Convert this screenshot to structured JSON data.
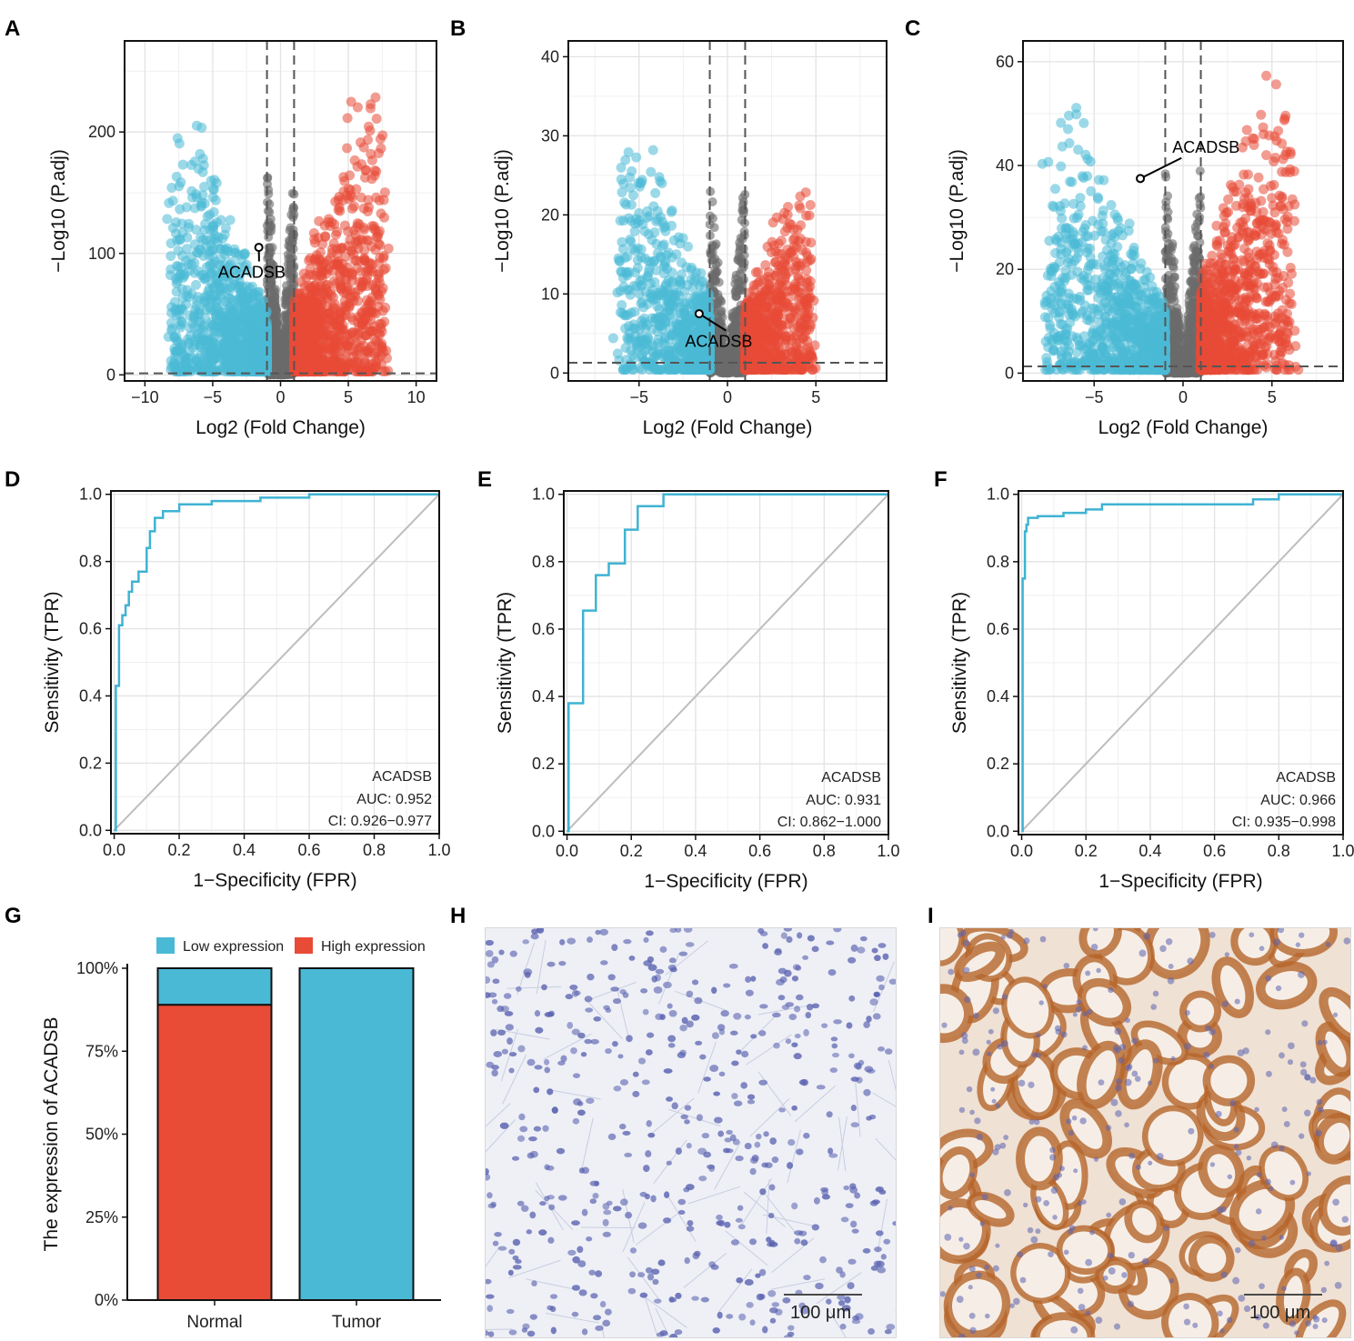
{
  "colors": {
    "low": "#4ab9d6",
    "high": "#e84b36",
    "ns": "#6b6b6b",
    "roc": "#3fb3d3",
    "diag": "#bdbdbd",
    "ihc_stain": "#b5652a",
    "ihc_nuclei": "#5b63b0"
  },
  "chart_data": [
    {
      "id": "A",
      "panel_label": "A",
      "type": "scatter",
      "xlabel": "Log2 (Fold Change)",
      "ylabel": "−Log10 (P.adj)",
      "xlim": [
        -11.5,
        11.5
      ],
      "ylim": [
        -5,
        275
      ],
      "xticks": [
        -10,
        -5,
        0,
        5,
        10
      ],
      "xtick_labels": [
        "−10",
        "−5",
        "0",
        "5",
        "10"
      ],
      "yticks": [
        0,
        100,
        200
      ],
      "ytick_labels": [
        "0",
        "100",
        "200"
      ],
      "fc_threshold": 1,
      "padj_line": 1.3,
      "gene": {
        "name": "ACADSB",
        "x": -1.6,
        "y": 105,
        "label_x": -4.6,
        "label_y": 80
      },
      "cloud": {
        "left_min": -8.5,
        "left_max": -1,
        "right_min": 1,
        "right_max": 8,
        "ymax_left": 230,
        "ymax_right": 262,
        "n": 1300
      }
    },
    {
      "id": "B",
      "panel_label": "B",
      "type": "scatter",
      "xlabel": "Log2 (Fold Change)",
      "ylabel": "−Log10 (P.adj)",
      "xlim": [
        -9,
        9
      ],
      "ylim": [
        -1,
        42
      ],
      "xticks": [
        -5,
        0,
        5
      ],
      "xtick_labels": [
        "−5",
        "0",
        "5"
      ],
      "yticks": [
        0,
        10,
        20,
        30,
        40
      ],
      "ytick_labels": [
        "0",
        "10",
        "20",
        "30",
        "40"
      ],
      "fc_threshold": 1,
      "padj_line": 1.3,
      "gene": {
        "name": "ACADSB",
        "x": -1.6,
        "y": 7.5,
        "label_x": -2.4,
        "label_y": 3.3
      },
      "cloud": {
        "left_min": -6.5,
        "left_max": -1,
        "right_min": 1,
        "right_max": 5,
        "ymax_left": 33,
        "ymax_right": 25,
        "n": 900
      }
    },
    {
      "id": "C",
      "panel_label": "C",
      "type": "scatter",
      "xlabel": "Log2 (Fold Change)",
      "ylabel": "−Log10 (P.adj)",
      "xlim": [
        -9,
        9
      ],
      "ylim": [
        -1.5,
        64
      ],
      "xticks": [
        -5,
        0,
        5
      ],
      "xtick_labels": [
        "−5",
        "0",
        "5"
      ],
      "yticks": [
        0,
        20,
        40,
        60
      ],
      "ytick_labels": [
        "0",
        "20",
        "40",
        "60"
      ],
      "fc_threshold": 1,
      "padj_line": 1.3,
      "gene": {
        "name": "ACADSB",
        "x": -2.4,
        "y": 37.5,
        "label_x": -0.6,
        "label_y": 42.5
      },
      "cloud": {
        "left_min": -8,
        "left_max": -1,
        "right_min": 1,
        "right_max": 6.5,
        "ymax_left": 54,
        "ymax_right": 61,
        "n": 1100
      }
    },
    {
      "id": "D",
      "panel_label": "D",
      "type": "line",
      "xlabel": "1−Specificity (FPR)",
      "ylabel": "Sensitivity (TPR)",
      "xlim": [
        -0.01,
        1.0
      ],
      "ylim": [
        -0.01,
        1.01
      ],
      "xticks": [
        0,
        0.2,
        0.4,
        0.6,
        0.8,
        1.0
      ],
      "xtick_labels": [
        "0.0",
        "0.2",
        "0.4",
        "0.6",
        "0.8",
        "1.0"
      ],
      "yticks": [
        0,
        0.2,
        0.4,
        0.6,
        0.8,
        1.0
      ],
      "ytick_labels": [
        "0.0",
        "0.2",
        "0.4",
        "0.6",
        "0.8",
        "1.0"
      ],
      "fpr": [
        0,
        0.005,
        0.005,
        0.015,
        0.015,
        0.025,
        0.025,
        0.035,
        0.035,
        0.045,
        0.045,
        0.055,
        0.055,
        0.075,
        0.075,
        0.1,
        0.1,
        0.11,
        0.11,
        0.125,
        0.125,
        0.15,
        0.15,
        0.2,
        0.2,
        0.3,
        0.3,
        0.45,
        0.45,
        0.6,
        0.6,
        1.0
      ],
      "tpr": [
        0,
        0,
        0.43,
        0.43,
        0.61,
        0.61,
        0.64,
        0.64,
        0.67,
        0.67,
        0.71,
        0.71,
        0.74,
        0.74,
        0.77,
        0.77,
        0.84,
        0.84,
        0.89,
        0.89,
        0.93,
        0.93,
        0.95,
        0.95,
        0.97,
        0.97,
        0.98,
        0.98,
        0.99,
        0.99,
        1.0,
        1.0
      ],
      "legend": {
        "name": "ACADSB",
        "auc": "AUC: 0.952",
        "ci": "CI: 0.926−0.977"
      }
    },
    {
      "id": "E",
      "panel_label": "E",
      "type": "line",
      "xlabel": "1−Specificity (FPR)",
      "ylabel": "Sensitivity (TPR)",
      "xlim": [
        -0.01,
        1.0
      ],
      "ylim": [
        -0.01,
        1.01
      ],
      "xticks": [
        0,
        0.2,
        0.4,
        0.6,
        0.8,
        1.0
      ],
      "xtick_labels": [
        "0.0",
        "0.2",
        "0.4",
        "0.6",
        "0.8",
        "1.0"
      ],
      "yticks": [
        0,
        0.2,
        0.4,
        0.6,
        0.8,
        1.0
      ],
      "ytick_labels": [
        "0.0",
        "0.2",
        "0.4",
        "0.6",
        "0.8",
        "1.0"
      ],
      "fpr": [
        0,
        0.005,
        0.005,
        0.05,
        0.05,
        0.09,
        0.09,
        0.13,
        0.13,
        0.18,
        0.18,
        0.22,
        0.22,
        0.3,
        0.3,
        1.0
      ],
      "tpr": [
        0,
        0,
        0.38,
        0.38,
        0.655,
        0.655,
        0.76,
        0.76,
        0.795,
        0.795,
        0.895,
        0.895,
        0.965,
        0.965,
        1.0,
        1.0
      ],
      "legend": {
        "name": "ACADSB",
        "auc": "AUC: 0.931",
        "ci": "CI: 0.862−1.000"
      }
    },
    {
      "id": "F",
      "panel_label": "F",
      "type": "line",
      "xlabel": "1−Specificity (FPR)",
      "ylabel": "Sensitivity (TPR)",
      "xlim": [
        -0.01,
        1.0
      ],
      "ylim": [
        -0.01,
        1.01
      ],
      "xticks": [
        0,
        0.2,
        0.4,
        0.6,
        0.8,
        1.0
      ],
      "xtick_labels": [
        "0.0",
        "0.2",
        "0.4",
        "0.6",
        "0.8",
        "1.0"
      ],
      "yticks": [
        0,
        0.2,
        0.4,
        0.6,
        0.8,
        1.0
      ],
      "ytick_labels": [
        "0.0",
        "0.2",
        "0.4",
        "0.6",
        "0.8",
        "1.0"
      ],
      "fpr": [
        0,
        0.003,
        0.003,
        0.01,
        0.01,
        0.015,
        0.015,
        0.02,
        0.02,
        0.05,
        0.05,
        0.13,
        0.13,
        0.2,
        0.2,
        0.25,
        0.25,
        0.72,
        0.72,
        0.8,
        0.8,
        1.0
      ],
      "tpr": [
        0,
        0,
        0.75,
        0.75,
        0.89,
        0.89,
        0.91,
        0.91,
        0.93,
        0.93,
        0.935,
        0.935,
        0.945,
        0.945,
        0.955,
        0.955,
        0.97,
        0.97,
        0.985,
        0.985,
        1.0,
        1.0
      ],
      "legend": {
        "name": "ACADSB",
        "auc": "AUC: 0.966",
        "ci": "CI: 0.935−0.998"
      }
    },
    {
      "id": "G",
      "panel_label": "G",
      "type": "bar",
      "stacked": true,
      "categories": [
        "Normal",
        "Tumor"
      ],
      "series": [
        {
          "name": "High expression",
          "values": [
            0.89,
            0.0
          ]
        },
        {
          "name": "Low expression",
          "values": [
            0.11,
            1.0
          ]
        }
      ],
      "legend_order": [
        "Low expression",
        "High expression"
      ],
      "ylabel": "The expression of ACADSB",
      "ylim": [
        0,
        1
      ],
      "yticks": [
        0,
        0.25,
        0.5,
        0.75,
        1.0
      ],
      "ytick_labels": [
        "0%",
        "25%",
        "50%",
        "75%",
        "100%"
      ]
    }
  ],
  "histology": [
    {
      "id": "H",
      "panel_label": "H",
      "scale_label": "100 μm",
      "stain": "negative"
    },
    {
      "id": "I",
      "panel_label": "I",
      "scale_label": "100 μm",
      "stain": "positive"
    }
  ]
}
